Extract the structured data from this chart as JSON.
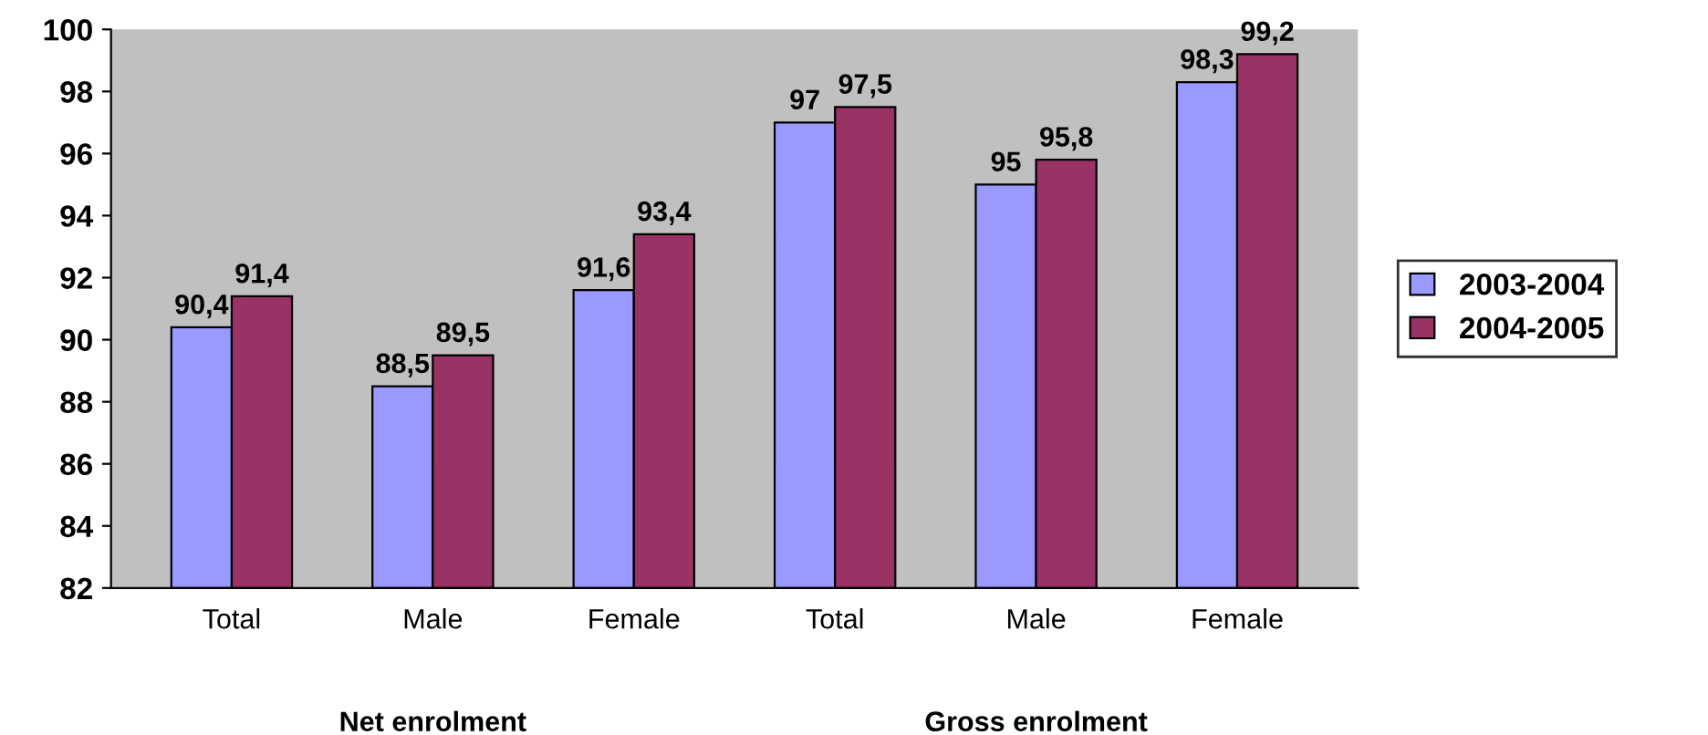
{
  "chart_data": {
    "type": "bar",
    "categories": [
      "Total",
      "Male",
      "Female",
      "Total",
      "Male",
      "Female"
    ],
    "series": [
      {
        "name": "2003-2004",
        "color": "#9999ff",
        "values": [
          90.4,
          88.5,
          91.6,
          97,
          95,
          98.3
        ],
        "value_labels": [
          "90,4",
          "88,5",
          "91,6",
          "97",
          "95",
          "98,3"
        ]
      },
      {
        "name": "2004-2005",
        "color": "#993366",
        "values": [
          91.4,
          89.5,
          93.4,
          97.5,
          95.8,
          99.2
        ],
        "value_labels": [
          "91,4",
          "89,5",
          "93,4",
          "97,5",
          "95,8",
          "99,2"
        ]
      }
    ],
    "ylim": [
      82,
      100
    ],
    "yticks": [
      82,
      84,
      86,
      88,
      90,
      92,
      94,
      96,
      98,
      100
    ],
    "grid": false,
    "legend": "right",
    "annotations": [
      "Net enrolment",
      "Gross enrolment"
    ]
  }
}
